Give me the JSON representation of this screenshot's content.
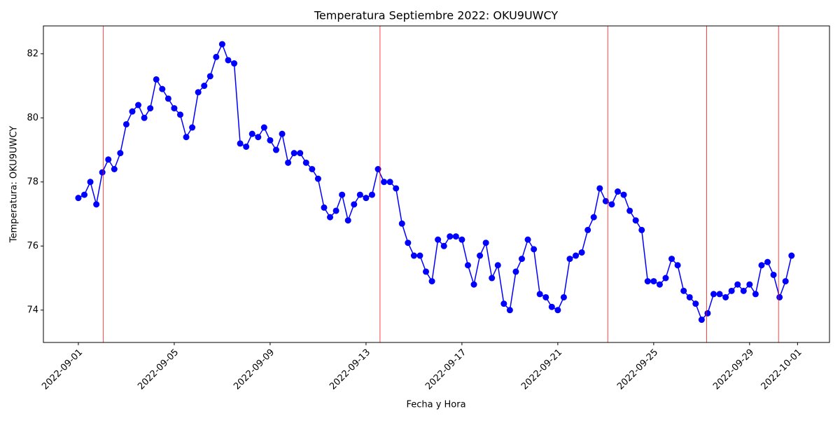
{
  "chart_data": {
    "type": "line",
    "title": "Temperatura Septiembre 2022: OKU9UWCY",
    "x_label": "Fecha y Hora",
    "y_label": "Temperatura: OKU9UWCY",
    "x": [
      "2022-09-01 00:00",
      "2022-09-01 06:00",
      "2022-09-01 12:00",
      "2022-09-01 18:00",
      "2022-09-02 00:00",
      "2022-09-02 06:00",
      "2022-09-02 12:00",
      "2022-09-02 18:00",
      "2022-09-03 00:00",
      "2022-09-03 06:00",
      "2022-09-03 12:00",
      "2022-09-03 18:00",
      "2022-09-04 00:00",
      "2022-09-04 06:00",
      "2022-09-04 12:00",
      "2022-09-04 18:00",
      "2022-09-05 00:00",
      "2022-09-05 06:00",
      "2022-09-05 12:00",
      "2022-09-05 18:00",
      "2022-09-06 00:00",
      "2022-09-06 06:00",
      "2022-09-06 12:00",
      "2022-09-06 18:00",
      "2022-09-07 00:00",
      "2022-09-07 06:00",
      "2022-09-07 12:00",
      "2022-09-07 18:00",
      "2022-09-08 00:00",
      "2022-09-08 06:00",
      "2022-09-08 12:00",
      "2022-09-08 18:00",
      "2022-09-09 00:00",
      "2022-09-09 06:00",
      "2022-09-09 12:00",
      "2022-09-09 18:00",
      "2022-09-10 00:00",
      "2022-09-10 06:00",
      "2022-09-10 12:00",
      "2022-09-10 18:00",
      "2022-09-11 00:00",
      "2022-09-11 06:00",
      "2022-09-11 12:00",
      "2022-09-11 18:00",
      "2022-09-12 00:00",
      "2022-09-12 06:00",
      "2022-09-12 12:00",
      "2022-09-12 18:00",
      "2022-09-13 00:00",
      "2022-09-13 06:00",
      "2022-09-13 12:00",
      "2022-09-13 18:00",
      "2022-09-14 00:00",
      "2022-09-14 06:00",
      "2022-09-14 12:00",
      "2022-09-14 18:00",
      "2022-09-15 00:00",
      "2022-09-15 06:00",
      "2022-09-15 12:00",
      "2022-09-15 18:00",
      "2022-09-16 00:00",
      "2022-09-16 06:00",
      "2022-09-16 12:00",
      "2022-09-16 18:00",
      "2022-09-17 00:00",
      "2022-09-17 06:00",
      "2022-09-17 12:00",
      "2022-09-17 18:00",
      "2022-09-18 00:00",
      "2022-09-18 06:00",
      "2022-09-18 12:00",
      "2022-09-18 18:00",
      "2022-09-19 00:00",
      "2022-09-19 06:00",
      "2022-09-19 12:00",
      "2022-09-19 18:00",
      "2022-09-20 00:00",
      "2022-09-20 06:00",
      "2022-09-20 12:00",
      "2022-09-20 18:00",
      "2022-09-21 00:00",
      "2022-09-21 06:00",
      "2022-09-21 12:00",
      "2022-09-21 18:00",
      "2022-09-22 00:00",
      "2022-09-22 06:00",
      "2022-09-22 12:00",
      "2022-09-22 18:00",
      "2022-09-23 00:00",
      "2022-09-23 06:00",
      "2022-09-23 12:00",
      "2022-09-23 18:00",
      "2022-09-24 00:00",
      "2022-09-24 06:00",
      "2022-09-24 12:00",
      "2022-09-24 18:00",
      "2022-09-25 00:00",
      "2022-09-25 06:00",
      "2022-09-25 12:00",
      "2022-09-25 18:00",
      "2022-09-26 00:00",
      "2022-09-26 06:00",
      "2022-09-26 12:00",
      "2022-09-26 18:00",
      "2022-09-27 00:00",
      "2022-09-27 06:00",
      "2022-09-27 12:00",
      "2022-09-27 18:00",
      "2022-09-28 00:00",
      "2022-09-28 06:00",
      "2022-09-28 12:00",
      "2022-09-28 18:00",
      "2022-09-29 00:00",
      "2022-09-29 06:00",
      "2022-09-29 12:00",
      "2022-09-29 18:00",
      "2022-09-30 00:00",
      "2022-09-30 06:00",
      "2022-09-30 12:00",
      "2022-09-30 18:00"
    ],
    "series": [
      {
        "color": "#0000ff",
        "values": [
          77.5,
          77.6,
          78.0,
          77.3,
          78.3,
          78.7,
          78.4,
          78.9,
          79.8,
          80.2,
          80.4,
          80.0,
          80.3,
          81.2,
          80.9,
          80.6,
          80.3,
          80.1,
          79.4,
          79.7,
          80.8,
          81.0,
          81.3,
          81.9,
          82.3,
          81.8,
          81.7,
          79.2,
          79.1,
          79.5,
          79.4,
          79.7,
          79.3,
          79.0,
          79.5,
          78.6,
          78.9,
          78.9,
          78.6,
          78.4,
          78.1,
          77.2,
          76.9,
          77.1,
          77.6,
          76.8,
          77.3,
          77.6,
          77.5,
          77.6,
          78.4,
          78.0,
          78.0,
          77.8,
          76.7,
          76.1,
          75.7,
          75.7,
          75.2,
          74.9,
          76.2,
          76.0,
          76.3,
          76.3,
          76.2,
          75.4,
          74.8,
          75.7,
          76.1,
          75.0,
          75.4,
          74.2,
          74.0,
          75.2,
          75.6,
          76.2,
          75.9,
          74.5,
          74.4,
          74.1,
          74.0,
          74.4,
          75.6,
          75.7,
          75.8,
          76.5,
          76.9,
          77.8,
          77.4,
          77.3,
          77.7,
          77.6,
          77.1,
          76.8,
          76.5,
          74.9,
          74.9,
          74.8,
          75.0,
          75.6,
          75.4,
          74.6,
          74.4,
          74.2,
          73.7,
          73.9,
          74.5,
          74.5,
          74.4,
          74.6,
          74.8,
          74.6,
          74.8,
          74.5,
          75.4,
          75.5,
          75.1,
          74.4,
          74.9,
          75.7
        ]
      }
    ],
    "vlines": {
      "color": "#ff0000",
      "x": [
        "2022-09-02 01:00",
        "2022-09-13 14:00",
        "2022-09-23 02:00",
        "2022-09-27 05:00",
        "2022-09-30 05:00"
      ]
    },
    "xlim": [
      "2022-08-30 13:00",
      "2022-10-02 08:00"
    ],
    "xticks": [
      "2022-09-01",
      "2022-09-05",
      "2022-09-09",
      "2022-09-13",
      "2022-09-17",
      "2022-09-21",
      "2022-09-25",
      "2022-09-29",
      "2022-10-01"
    ],
    "ylim": [
      72.99,
      82.87
    ],
    "yticks": [
      74,
      76,
      78,
      80,
      82
    ],
    "grid": false
  }
}
